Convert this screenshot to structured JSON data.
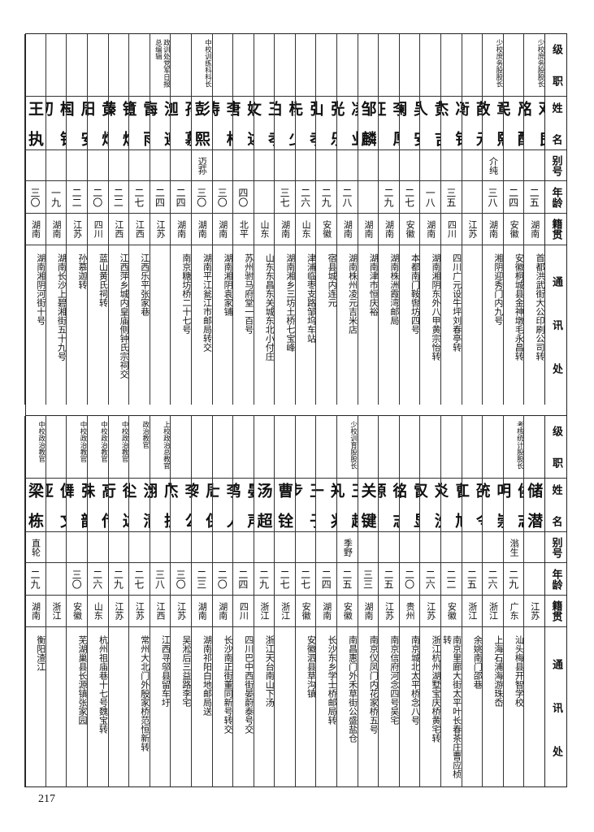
{
  "header": {
    "rank": "级职",
    "name": "姓名",
    "alias": "别号",
    "age": "年龄",
    "native": "籍贯",
    "address": "通讯处"
  },
  "top_rows": [
    {
      "rank": "少校庶务股股长",
      "name": "邓良铭",
      "alias": "",
      "age": "二五",
      "native": "湖南",
      "address": "首都洪武街大公印刷公司转"
    },
    {
      "rank": "",
      "name": "严醒民",
      "alias": "",
      "age": "二四",
      "native": "安徽",
      "address": "安徽桐城县金神墩毛永昌转"
    },
    {
      "rank": "少校庶务股股长",
      "name": "章熙敬",
      "alias": "介纯",
      "age": "三八",
      "native": "湖南",
      "address": "湘阴迎秀门内九号"
    },
    {
      "rank": "",
      "name": "薛元衡",
      "alias": "",
      "age": "",
      "native": "江苏",
      "address": ""
    },
    {
      "rank": "",
      "name": "冯铭杰",
      "alias": "",
      "age": "三五",
      "native": "四川",
      "address": "四川广元设牛坪刘春亭转"
    },
    {
      "rank": "",
      "name": "黄吉人",
      "alias": "",
      "age": "一八",
      "native": "湖南",
      "address": "湖南湘阴东外八甲黄宗怡转"
    },
    {
      "rank": "",
      "name": "吴安澜",
      "alias": "",
      "age": "二七",
      "native": "安徽",
      "address": "本都南门鞍辔坊四号"
    },
    {
      "rank": "",
      "name": "李厚征",
      "alias": "",
      "age": "二九",
      "native": "湖南",
      "address": "湖南株洲霞湾邮局"
    },
    {
      "rank": "",
      "name": "邹麟",
      "alias": "",
      "age": "",
      "native": "湖南",
      "address": "湖南津市恒庆裕"
    },
    {
      "rank": "",
      "name": "凌业光",
      "alias": "",
      "age": "二八",
      "native": "湖南",
      "address": "湖南株州凌元吉米店"
    },
    {
      "rank": "",
      "name": "张乐山",
      "alias": "",
      "age": "二九",
      "native": "安徽",
      "address": "宿县城内连元"
    },
    {
      "rank": "",
      "name": "张孝先",
      "alias": "",
      "age": "二六",
      "native": "山东",
      "address": "津浦临枣支路邹坞车站"
    },
    {
      "rank": "",
      "name": "杨少伯",
      "alias": "",
      "age": "三七",
      "native": "湖南",
      "address": "湖南湘乡三坊土桥七宝峰"
    },
    {
      "rank": "",
      "name": "王孝文",
      "alias": "",
      "age": "",
      "native": "山东",
      "address": "山东东昌东关城东北小付庄"
    },
    {
      "rank": "",
      "name": "姚述唐",
      "alias": "",
      "age": "四〇",
      "native": "北平",
      "address": "苏州驸马府堂一百号"
    },
    {
      "rank": "",
      "name": "李松涛",
      "alias": "",
      "age": "三〇",
      "native": "湖南",
      "address": "湖南湘阴袁家铺"
    },
    {
      "rank": "中校训练科科长",
      "name": "彭熙",
      "alias": "迈荪",
      "age": "三〇",
      "native": "湖南",
      "address": "湖南平江瓮江市邮局转交"
    },
    {
      "rank": "",
      "name": "孙慕迦",
      "alias": "",
      "age": "二四",
      "native": "湖南",
      "address": "南京糖坊桥二十七号"
    },
    {
      "rank": "政训处党军日报总编辑",
      "name": "沈遵晦",
      "alias": "",
      "age": "二四",
      "native": "江苏",
      "address": ""
    },
    {
      "rank": "",
      "name": "雷雨簠",
      "alias": "",
      "age": "二七",
      "native": "江西",
      "address": "江西乐平张家巷"
    },
    {
      "rank": "",
      "name": "钟焕臻",
      "alias": "",
      "age": "二二",
      "native": "江西",
      "address": "江西萍乡城内皇庙侧钟氏宗祠交"
    },
    {
      "rank": "",
      "name": "黄炳阳",
      "alias": "",
      "age": "二〇",
      "native": "四川",
      "address": "蓝山黄氏祠转"
    },
    {
      "rank": "",
      "name": "周安国",
      "alias": "",
      "age": "二二",
      "native": "江苏",
      "address": "孙慕迦转"
    },
    {
      "rank": "",
      "name": "杨铭初",
      "alias": "",
      "age": "一九",
      "native": "湖南",
      "address": "湖南长沙上碧湘街五十九号"
    },
    {
      "rank": "",
      "name": "王执",
      "alias": "",
      "age": "三〇",
      "native": "湖南",
      "address": "湖南湘阴河街十号"
    }
  ],
  "bottom_rows": [
    {
      "rank": "",
      "name": "储潜",
      "alias": "",
      "age": "",
      "native": "江苏",
      "address": ""
    },
    {
      "rank": "考核统计股股长",
      "name": "侯志明",
      "alias": "滃生",
      "age": "二九",
      "native": "广东",
      "address": "汕头梅县开智学校"
    },
    {
      "rank": "",
      "name": "叶崇统",
      "alias": "",
      "age": "二六",
      "native": "浙江",
      "address": "上海石浦海游珠岙"
    },
    {
      "rank": "",
      "name": "邵令江",
      "alias": "",
      "age": "二五",
      "native": "浙江",
      "address": "余姚南门邵巷"
    },
    {
      "rank": "",
      "name": "曹旭炎",
      "alias": "",
      "age": "二二",
      "native": "安徽",
      "address": "南京里廊大街太平叶长春茶庄曹应桢转"
    },
    {
      "rank": "",
      "name": "刘洗汉",
      "alias": "",
      "age": "二六",
      "native": "江苏",
      "address": "浙江杭州湖墅宝庆桥黄宅转"
    },
    {
      "rank": "",
      "name": "雷显铭",
      "alias": "",
      "age": "二〇",
      "native": "贵州",
      "address": "南京城北太平桥念八号"
    },
    {
      "rank": "",
      "name": "徐志源",
      "alias": "",
      "age": "二五",
      "native": "江苏",
      "address": "南京信府河念四号吴宅"
    },
    {
      "rank": "",
      "name": "关键",
      "alias": "",
      "age": "三三",
      "native": "湖南",
      "address": "南京仪凤门内花家桥五号"
    },
    {
      "rank": "少校训育股股长",
      "name": "王超凡",
      "alias": "季野",
      "age": "二五",
      "native": "安徽",
      "address": "南昌惠门外禾草街公盛盐仓"
    },
    {
      "rank": "",
      "name": "郑兆一",
      "alias": "",
      "age": "二四",
      "native": "湖南",
      "address": "长沙东乡学士桥邮局转"
    },
    {
      "rank": "",
      "name": "王子步",
      "alias": "",
      "age": "二七",
      "native": "安徽",
      "address": "安徽泗县草沟镇"
    },
    {
      "rank": "",
      "name": "曹铨",
      "alias": "",
      "age": "二七",
      "native": "浙江",
      "address": ""
    },
    {
      "rank": "",
      "name": "汤超",
      "alias": "",
      "age": "二九",
      "native": "浙江",
      "address": "浙江天台南山下汤"
    },
    {
      "rank": "",
      "name": "晏声鸿",
      "alias": "",
      "age": "二四",
      "native": "四川",
      "address": "四川巴中西街晏蔚泰号交"
    },
    {
      "rank": "",
      "name": "李人士",
      "alias": "",
      "age": "二〇",
      "native": "湖南",
      "address": "长沙南正街董同新号转交"
    },
    {
      "rank": "",
      "name": "周保黎",
      "alias": "",
      "age": "二三",
      "native": "湖南",
      "address": "湖南祁阳白地邮局送"
    },
    {
      "rank": "",
      "name": "李公杰",
      "alias": "",
      "age": "三〇",
      "native": "江苏",
      "address": "吴淞后三益路李宅"
    },
    {
      "rank": "上校政治总教官",
      "name": "邝振翎",
      "alias": "",
      "age": "三八",
      "native": "江西",
      "address": "江西寻邬县留车圩"
    },
    {
      "rank": "政治教官",
      "name": "沈清尘",
      "alias": "",
      "age": "二七",
      "native": "江苏",
      "address": "常州大北门外殷家桥范恒新转"
    },
    {
      "rank": "中校政治教官",
      "name": "徐达行",
      "alias": "",
      "age": "二九",
      "native": "江苏",
      "address": ""
    },
    {
      "rank": "中校政治教官",
      "name": "高传珠",
      "alias": "",
      "age": "二六",
      "native": "山东",
      "address": "杭州祖庙巷十七号魏宝转"
    },
    {
      "rank": "中校政治教官",
      "name": "张韶舞",
      "alias": "",
      "age": "三〇",
      "native": "安徽",
      "address": "芜湖巢县长源镇张家园"
    },
    {
      "rank": "",
      "name": "倪文亚",
      "alias": "",
      "age": "",
      "native": "浙江",
      "address": ""
    },
    {
      "rank": "中校政治教官",
      "name": "梁栋",
      "alias": "直轮",
      "age": "二九",
      "native": "湖南",
      "address": "衡阳渣江"
    }
  ],
  "page_number": "217"
}
